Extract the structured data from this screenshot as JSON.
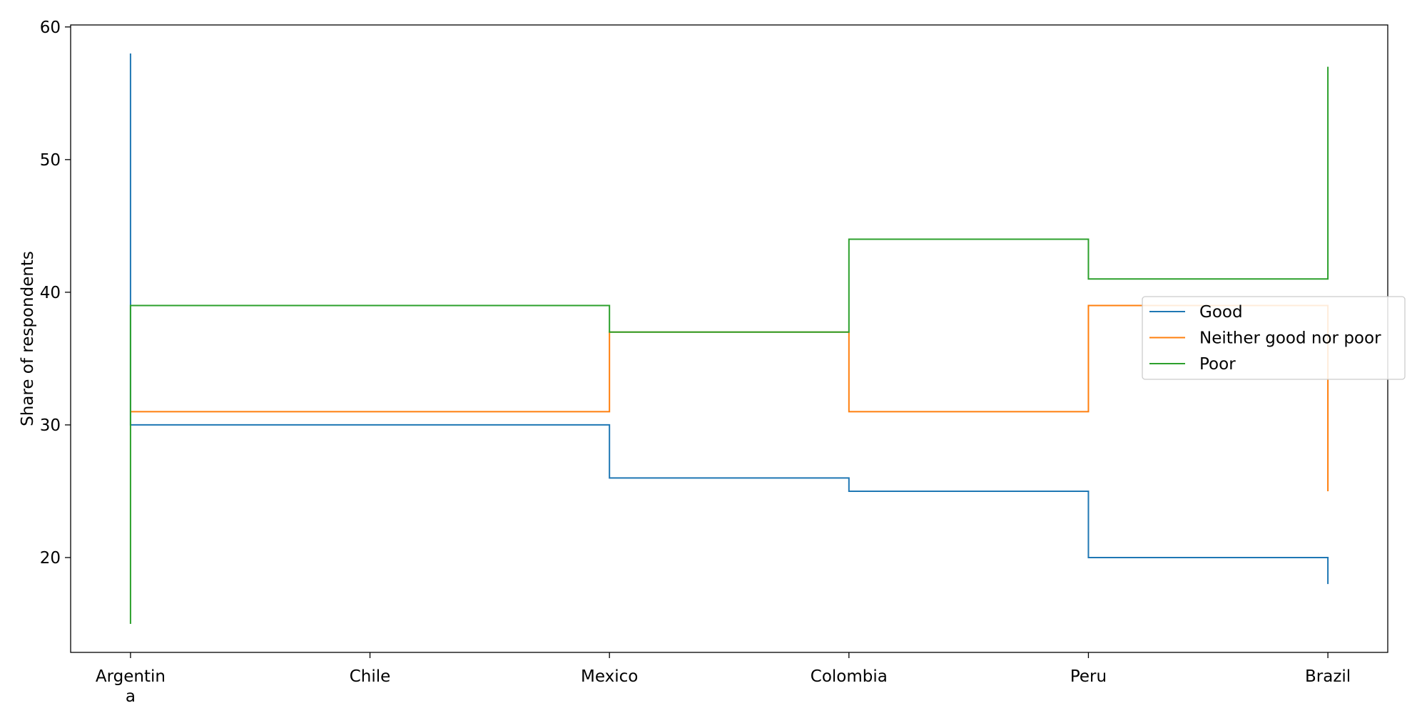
{
  "chart_data": {
    "type": "line",
    "step": "post",
    "categories": [
      "Argentina",
      "Chile",
      "Mexico",
      "Colombia",
      "Peru",
      "Brazil"
    ],
    "series": [
      {
        "name": "Good",
        "color": "#1f77b4",
        "values": [
          58,
          30,
          26,
          25,
          20,
          18
        ]
      },
      {
        "name": "Neither good nor poor",
        "color": "#ff7f0e",
        "values": [
          31,
          31,
          37,
          31,
          39,
          25
        ]
      },
      {
        "name": "Poor",
        "color": "#2ca02c",
        "values": [
          15,
          39,
          37,
          44,
          41,
          57
        ]
      }
    ],
    "first_step_to": [
      {
        "values": [
          30,
          31,
          39
        ]
      }
    ],
    "xlabel": "",
    "ylabel": "Share of respondents",
    "ylim": [
      12.85,
      60.15
    ],
    "yticks": [
      20,
      30,
      40,
      50,
      60
    ],
    "grid": false,
    "legend_position": "right"
  }
}
